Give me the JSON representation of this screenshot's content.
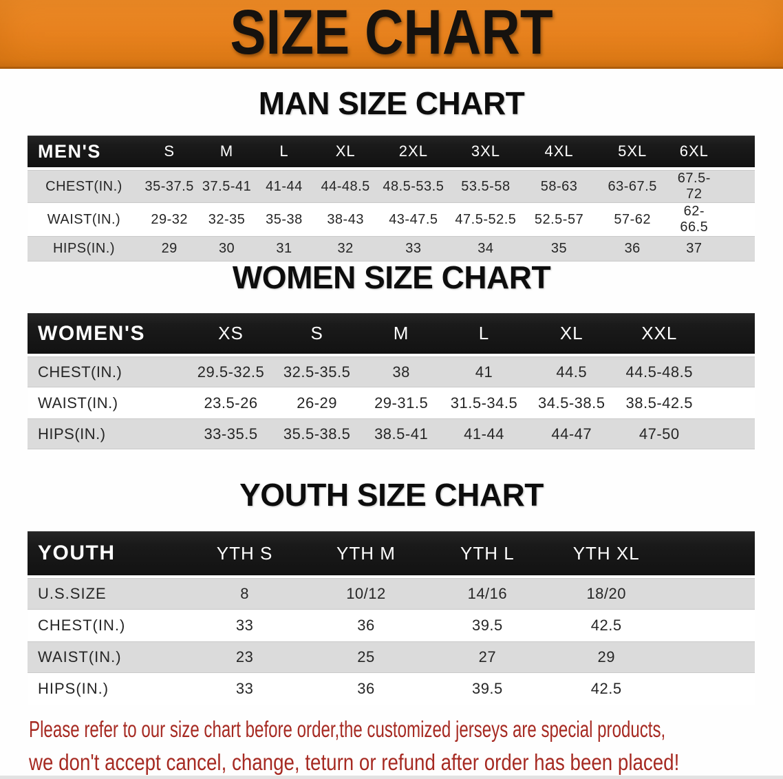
{
  "banner": {
    "title": "SIZE CHART"
  },
  "sections": {
    "men": {
      "heading": "MAN SIZE CHART",
      "table": {
        "header": [
          "MEN'S",
          "S",
          "M",
          "L",
          "XL",
          "2XL",
          "3XL",
          "4XL",
          "5XL",
          "6XL"
        ],
        "rows": [
          [
            "CHEST(IN.)",
            "35-37.5",
            "37.5-41",
            "41-44",
            "44-48.5",
            "48.5-53.5",
            "53.5-58",
            "58-63",
            "63-67.5",
            "67.5-72"
          ],
          [
            "WAIST(IN.)",
            "29-32",
            "32-35",
            "35-38",
            "38-43",
            "43-47.5",
            "47.5-52.5",
            "52.5-57",
            "57-62",
            "62-66.5"
          ],
          [
            "HIPS(IN.)",
            "29",
            "30",
            "31",
            "32",
            "33",
            "34",
            "35",
            "36",
            "37"
          ]
        ]
      }
    },
    "women": {
      "heading": "WOMEN SIZE CHART",
      "table": {
        "header": [
          "WOMEN'S",
          "XS",
          "S",
          "M",
          "L",
          "XL",
          "XXL"
        ],
        "rows": [
          [
            "CHEST(IN.)",
            "29.5-32.5",
            "32.5-35.5",
            "38",
            "41",
            "44.5",
            "44.5-48.5"
          ],
          [
            "WAIST(IN.)",
            "23.5-26",
            "26-29",
            "29-31.5",
            "31.5-34.5",
            "34.5-38.5",
            "38.5-42.5"
          ],
          [
            "HIPS(IN.)",
            "33-35.5",
            "35.5-38.5",
            "38.5-41",
            "41-44",
            "44-47",
            "47-50"
          ]
        ]
      }
    },
    "youth": {
      "heading": "YOUTH SIZE CHART",
      "table": {
        "header": [
          "YOUTH",
          "YTH S",
          "YTH M",
          "YTH L",
          "YTH XL"
        ],
        "rows": [
          [
            "U.S.SIZE",
            "8",
            "10/12",
            "14/16",
            "18/20"
          ],
          [
            "CHEST(IN.)",
            "33",
            "36",
            "39.5",
            "42.5"
          ],
          [
            "WAIST(IN.)",
            "23",
            "25",
            "27",
            "29"
          ],
          [
            "HIPS(IN.)",
            "33",
            "36",
            "39.5",
            "42.5"
          ]
        ]
      }
    }
  },
  "disclaimer": {
    "line1": "Please refer to our size chart before order,the customized jerseys are special products,",
    "line2": "we don't accept cancel, change, teturn or refund after order has been placed!"
  },
  "colors": {
    "banner_orange": "#E8821E",
    "header_bar_black": "#1A1A1A",
    "shaded_row_gray": "#DBDBDB",
    "disclaimer_red": "#A62A22"
  }
}
